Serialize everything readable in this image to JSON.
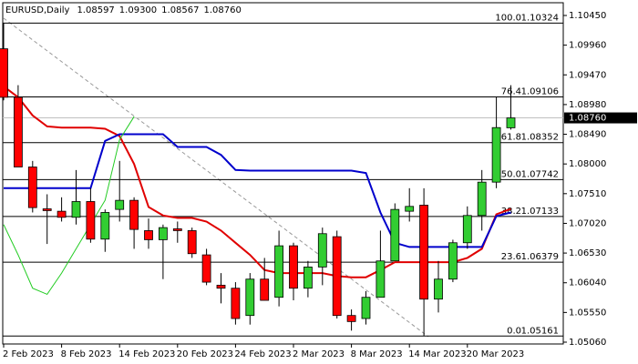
{
  "chart_data": {
    "type": "candlestick",
    "title": "EURUSD,Daily",
    "header_prices": [
      "1.08597",
      "1.09300",
      "1.08567",
      "1.08760"
    ],
    "categories": [
      "2 Feb 2023",
      null,
      null,
      null,
      "8 Feb 2023",
      null,
      null,
      null,
      "14 Feb 2023",
      null,
      null,
      null,
      "20 Feb 2023",
      null,
      null,
      null,
      "24 Feb 2023",
      null,
      null,
      null,
      "2 Mar 2023",
      null,
      null,
      null,
      "8 Mar 2023",
      null,
      null,
      null,
      "14 Mar 2023",
      null,
      null,
      null,
      "20 Mar 2023",
      null,
      null,
      null
    ],
    "open": [
      1.099,
      1.091,
      1.0795,
      1.0726,
      1.0722,
      1.0712,
      1.0738,
      1.0676,
      1.0725,
      1.074,
      1.069,
      1.0675,
      1.0693,
      1.069,
      1.065,
      1.06,
      1.0595,
      1.055,
      1.061,
      1.058,
      1.0665,
      1.0595,
      1.063,
      1.068,
      1.055,
      1.0545,
      1.058,
      1.064,
      1.0722,
      1.0732,
      1.0577,
      1.061,
      1.067,
      1.0715,
      1.077,
      1.08597
    ],
    "high": [
      1.10324,
      1.093,
      1.0805,
      1.075,
      1.0745,
      1.079,
      1.076,
      1.0725,
      1.0805,
      1.0745,
      1.071,
      1.07,
      1.0705,
      1.0695,
      1.066,
      1.062,
      1.0605,
      1.062,
      1.0645,
      1.069,
      1.067,
      1.064,
      1.0695,
      1.069,
      1.056,
      1.059,
      1.069,
      1.0735,
      1.076,
      1.076,
      1.064,
      1.0675,
      1.073,
      1.079,
      1.091,
      1.093
    ],
    "low": [
      1.0905,
      1.0795,
      1.072,
      1.0668,
      1.0705,
      1.07,
      1.067,
      1.0655,
      1.0705,
      1.066,
      1.066,
      1.061,
      1.067,
      1.0645,
      1.06,
      1.057,
      1.0535,
      1.0535,
      1.0575,
      1.0565,
      1.0575,
      1.058,
      1.06,
      1.0545,
      1.0525,
      1.0535,
      1.058,
      1.064,
      1.0705,
      1.05161,
      1.0555,
      1.0605,
      1.066,
      1.069,
      1.076,
      1.08567
    ],
    "close": [
      1.091,
      1.0795,
      1.0728,
      1.0723,
      1.0712,
      1.0738,
      1.0676,
      1.072,
      1.074,
      1.0692,
      1.0675,
      1.0695,
      1.069,
      1.0652,
      1.0605,
      1.0595,
      1.0545,
      1.061,
      1.0575,
      1.0665,
      1.0595,
      1.063,
      1.0685,
      1.055,
      1.054,
      1.058,
      1.064,
      1.0725,
      1.073,
      1.0577,
      1.061,
      1.067,
      1.0715,
      1.077,
      1.086,
      1.0876
    ],
    "up_color": "#32cd32",
    "down_color": "#ff0000",
    "lines": [
      {
        "color": "#e00000",
        "values": [
          1.0928,
          1.091,
          1.088,
          1.0862,
          1.086,
          1.086,
          1.086,
          1.0858,
          1.0846,
          1.08,
          1.0729,
          1.0715,
          1.0711,
          1.0711,
          1.0705,
          1.069,
          1.067,
          1.065,
          1.0625,
          1.062,
          1.062,
          1.062,
          1.062,
          1.0615,
          1.0613,
          1.0613,
          1.0625,
          1.0638,
          1.0638,
          1.0638,
          1.0638,
          1.0638,
          1.0645,
          1.066,
          1.0717,
          1.0726
        ]
      },
      {
        "color": "#0000cc",
        "values": [
          1.076,
          1.076,
          1.076,
          1.076,
          1.076,
          1.076,
          1.076,
          1.0838,
          1.0849,
          1.0849,
          1.0849,
          1.0849,
          1.0828,
          1.0828,
          1.0828,
          1.0815,
          1.079,
          1.0789,
          1.0789,
          1.0789,
          1.0789,
          1.0789,
          1.0789,
          1.0789,
          1.0789,
          1.0785,
          1.072,
          1.067,
          1.0663,
          1.0663,
          1.0663,
          1.0663,
          1.0663,
          1.0663,
          1.0714,
          1.072
        ]
      },
      {
        "color": "#22cc22",
        "values": [
          1.07,
          1.065,
          1.0595,
          1.0585,
          1.062,
          1.066,
          1.07,
          1.074,
          1.084,
          1.0878,
          null,
          null,
          null,
          null,
          null,
          null,
          null,
          null,
          null,
          null,
          null,
          null,
          null,
          null,
          null,
          null,
          null,
          null,
          null,
          null,
          null,
          null,
          null,
          null,
          null,
          null
        ]
      }
    ],
    "fib_levels": [
      {
        "level": "100.0",
        "price": 1.10324
      },
      {
        "level": "76.4",
        "price": 1.09106
      },
      {
        "level": "61.8",
        "price": 1.08352
      },
      {
        "level": "50.0",
        "price": 1.07742
      },
      {
        "level": "38.2",
        "price": 1.07133
      },
      {
        "level": "23.6",
        "price": 1.06379
      },
      {
        "level": "0.0",
        "price": 1.05161
      }
    ],
    "last_price": {
      "value": 1.0876,
      "label": "1.08760"
    },
    "ylim": [
      1.0503,
      1.1066
    ],
    "yticks": [
      {
        "value": 1.1045,
        "label": "1.10450"
      },
      {
        "value": 1.0996,
        "label": "1.09960"
      },
      {
        "value": 1.0947,
        "label": "1.09470"
      },
      {
        "value": 1.0898,
        "label": "1.08980"
      },
      {
        "value": 1.0849,
        "label": "1.08490"
      },
      {
        "value": 1.08,
        "label": "1.08000"
      },
      {
        "value": 1.0751,
        "label": "1.07510"
      },
      {
        "value": 1.0702,
        "label": "1.07020"
      },
      {
        "value": 1.0653,
        "label": "1.06530"
      },
      {
        "value": 1.0604,
        "label": "1.06040"
      },
      {
        "value": 1.0555,
        "label": "1.05550"
      },
      {
        "value": 1.0506,
        "label": "1.05060"
      }
    ]
  }
}
